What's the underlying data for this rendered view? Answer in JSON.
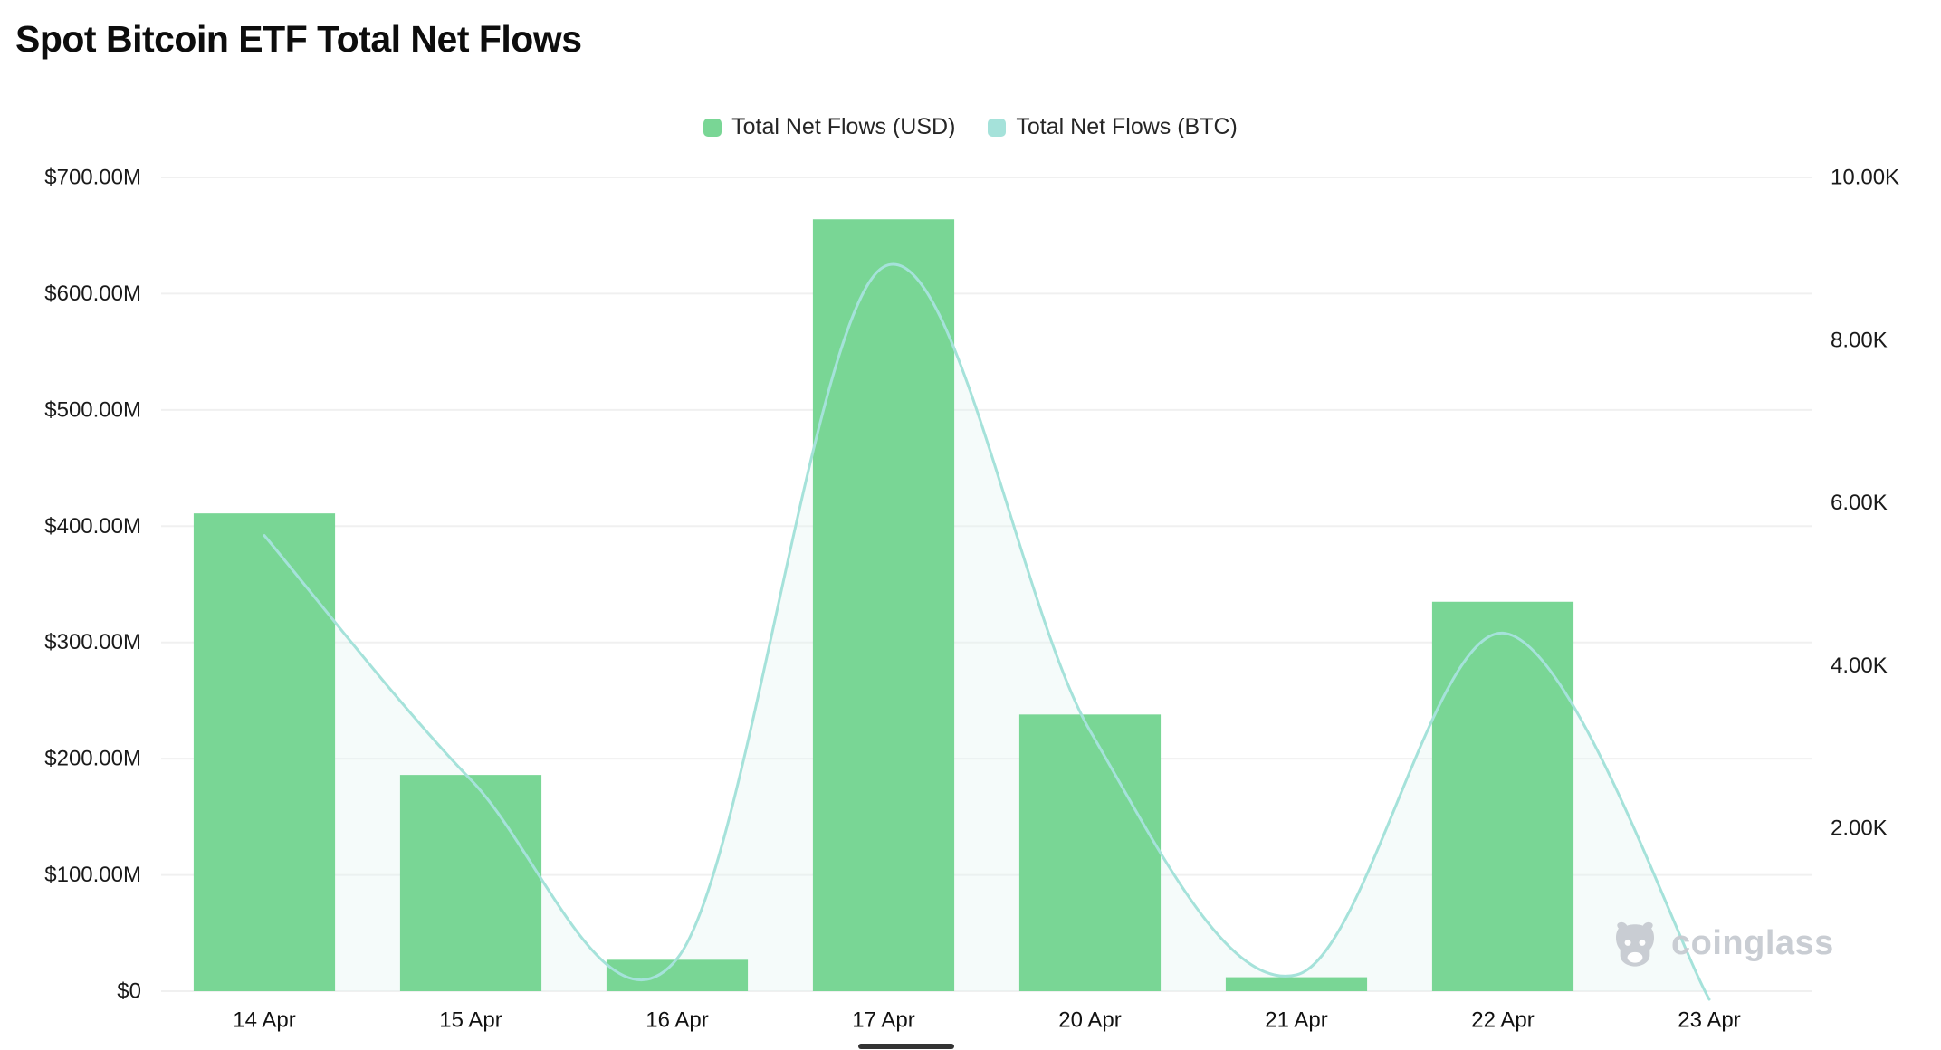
{
  "header": {
    "title": "Spot Bitcoin ETF Total Net Flows"
  },
  "legend": [
    {
      "label": "Total Net Flows (USD)",
      "color": "#79d695"
    },
    {
      "label": "Total Net Flows (BTC)",
      "color": "#a5e2da"
    }
  ],
  "watermark": {
    "label": "coinglass",
    "icon": "coinglass-bull-logo-icon",
    "color": "#c7cbd1"
  },
  "chart_data": {
    "type": "bar+line",
    "title": "Spot Bitcoin ETF Total Net Flows",
    "categories": [
      "14 Apr",
      "15 Apr",
      "16 Apr",
      "17 Apr",
      "20 Apr",
      "21 Apr",
      "22 Apr",
      "23 Apr"
    ],
    "series": [
      {
        "name": "Total Net Flows (USD)",
        "type": "bar",
        "axis": "left",
        "unit": "USD (millions)",
        "color": "#79d695",
        "values": [
          411,
          186,
          27,
          664,
          238,
          12,
          335,
          0
        ]
      },
      {
        "name": "Total Net Flows (BTC)",
        "type": "line",
        "axis": "right",
        "unit": "BTC (thousands)",
        "color": "#a5e2da",
        "area_fill": "rgba(225,244,241,0.35)",
        "values": [
          5.6,
          2.6,
          0.4,
          8.9,
          3.2,
          0.2,
          4.4,
          -0.1
        ]
      }
    ],
    "left_axis": {
      "min": 0,
      "max": 700,
      "tick_values": [
        0,
        100,
        200,
        300,
        400,
        500,
        600,
        700
      ],
      "tick_labels": [
        "$0",
        "$100.00M",
        "$200.00M",
        "$300.00M",
        "$400.00M",
        "$500.00M",
        "$600.00M",
        "$700.00M"
      ]
    },
    "right_axis": {
      "min": 0,
      "max": 10,
      "tick_values": [
        2,
        4,
        6,
        8,
        10
      ],
      "tick_labels": [
        "2.00K",
        "4.00K",
        "6.00K",
        "8.00K",
        "10.00K"
      ]
    },
    "grid": true,
    "grid_color": "#f0f0f0",
    "legend_position": "top-center"
  }
}
